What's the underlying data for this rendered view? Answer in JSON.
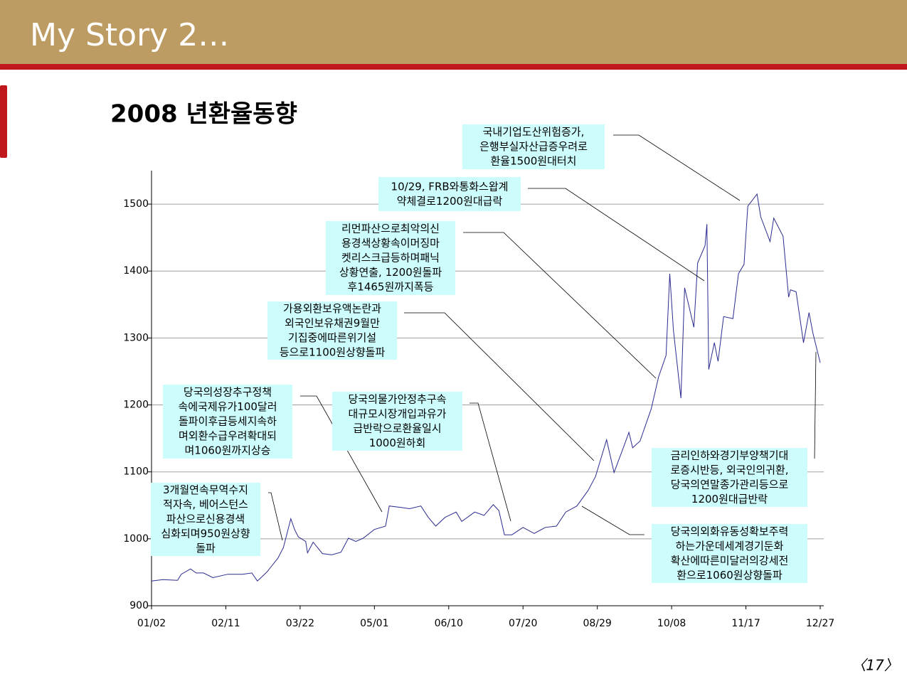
{
  "slide_title": "My Story 2…",
  "page_number": "〈17〉",
  "chart_data": {
    "type": "line",
    "title": "2008 년환율동향",
    "color": "#2b2b8f",
    "grid": true,
    "x": [
      "01/02",
      "01/08",
      "01/16",
      "01/18",
      "01/23",
      "01/26",
      "01/30",
      "02/04",
      "02/12",
      "02/20",
      "02/25",
      "02/28",
      "03/04",
      "03/10",
      "03/13",
      "03/17",
      "03/19",
      "03/21",
      "03/25",
      "03/26",
      "03/29",
      "04/03",
      "04/08",
      "04/13",
      "04/17",
      "04/21",
      "04/25",
      "05/01",
      "05/07",
      "05/09",
      "05/15",
      "05/20",
      "05/26",
      "05/30",
      "06/03",
      "06/08",
      "06/14",
      "06/17",
      "06/24",
      "06/29",
      "07/04",
      "07/07",
      "07/10",
      "07/14",
      "07/20",
      "07/26",
      "08/01",
      "08/07",
      "08/12",
      "08/18",
      "08/24",
      "08/28",
      "09/03",
      "09/07",
      "09/12",
      "09/15",
      "09/17",
      "09/21",
      "09/27",
      "10/01",
      "10/05",
      "10/07",
      "10/09",
      "10/13",
      "10/15",
      "10/20",
      "10/22",
      "10/26",
      "10/27",
      "10/28",
      "10/31",
      "11/02",
      "11/05",
      "11/10",
      "11/13",
      "11/16",
      "11/18",
      "11/23",
      "11/25",
      "11/30",
      "12/02",
      "12/07",
      "12/10",
      "12/11",
      "12/14",
      "12/18",
      "12/21",
      "12/23",
      "12/27"
    ],
    "values": [
      937,
      939,
      938,
      947,
      955,
      949,
      949,
      942,
      947,
      947,
      949,
      937,
      950,
      971,
      987,
      1030,
      1014,
      1003,
      996,
      979,
      995,
      978,
      976,
      980,
      1001,
      996,
      1001,
      1014,
      1019,
      1049,
      1047,
      1045,
      1049,
      1032,
      1019,
      1032,
      1040,
      1026,
      1040,
      1035,
      1051,
      1042,
      1006,
      1006,
      1017,
      1008,
      1017,
      1019,
      1040,
      1049,
      1072,
      1093,
      1148,
      1099,
      1136,
      1159,
      1136,
      1146,
      1194,
      1242,
      1274,
      1396,
      1311,
      1210,
      1375,
      1316,
      1412,
      1438,
      1470,
      1253,
      1293,
      1265,
      1332,
      1329,
      1396,
      1410,
      1497,
      1515,
      1481,
      1444,
      1479,
      1452,
      1361,
      1372,
      1369,
      1293,
      1338,
      1308,
      1263
    ],
    "xlim": [
      "01/02",
      "12/27"
    ],
    "xticks": [
      "01/02",
      "02/11",
      "03/22",
      "05/01",
      "06/10",
      "07/20",
      "08/29",
      "10/08",
      "11/17",
      "12/27"
    ],
    "ylim": [
      900,
      1550
    ],
    "yticks": [
      900,
      1000,
      1100,
      1200,
      1300,
      1400,
      1500
    ],
    "annotations": [
      {
        "lines": [
          "국내기업도산위험증가,",
          "은행부실자산급증우려로",
          "환율1500원대터치"
        ]
      },
      {
        "lines": [
          "10/29, FRB와통화스왑계",
          "약체결로1200원대급락"
        ]
      },
      {
        "lines": [
          "리먼파산으로최악의신",
          "용경색상황속이머징마",
          "켓리스크급등하며패닉",
          "상황연출, 1200원돌파",
          "후1465원까지폭등"
        ]
      },
      {
        "lines": [
          "가용외환보유액논란과",
          "외국인보유채권9월만",
          "기집중에따른위기설",
          "등으로1100원상향돌파"
        ]
      },
      {
        "lines": [
          "당국의성장추구정책",
          "속에국제유가100달러",
          "돌파이후급등세지속하",
          "며외환수급우려확대되",
          "며1060원까지상승"
        ]
      },
      {
        "lines": [
          "당국의물가안정추구속",
          "대규모시장개입과유가",
          "급반락으로환율일시",
          "1000원하회"
        ]
      },
      {
        "lines": [
          "3개월연속무역수지",
          "적자속, 베어스턴스",
          "파산으로신용경색",
          "심화되며950원상향",
          "돌파"
        ]
      },
      {
        "lines": [
          "금리인하와경기부양책기대",
          "로증시반등, 외국인의귀환,",
          "당국의연말종가관리등으로",
          "1200원대급반락"
        ]
      },
      {
        "lines": [
          "당국의외화유동성확보주력",
          "하는가운데세계경기둔화",
          "확산에따른미달러의강세전",
          "환으로1060원상향돌파"
        ]
      }
    ]
  }
}
